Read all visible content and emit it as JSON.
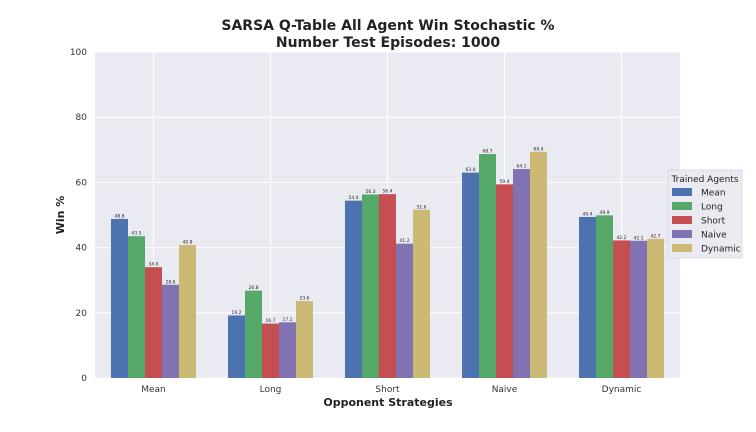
{
  "chart_data": {
    "type": "bar",
    "title_line1": "SARSA Q-Table All Agent Win Stochastic %",
    "title_line2": "Number Test Episodes: 1000",
    "xlabel": "Opponent Strategies",
    "ylabel": "Win %",
    "ylim": [
      0,
      100
    ],
    "yticks": [
      0,
      20,
      40,
      60,
      80,
      100
    ],
    "categories": [
      "Mean",
      "Long",
      "Short",
      "Naive",
      "Dynamic"
    ],
    "legend_title": "Trained Agents",
    "legend_position": "right",
    "grid": true,
    "series": [
      {
        "name": "Mean",
        "color": "#4c72b0",
        "values": [
          48.8,
          19.2,
          54.4,
          63.0,
          49.4
        ]
      },
      {
        "name": "Long",
        "color": "#55a868",
        "values": [
          43.5,
          26.8,
          56.3,
          68.7,
          49.9
        ]
      },
      {
        "name": "Short",
        "color": "#c44e52",
        "values": [
          34.0,
          16.7,
          56.4,
          59.4,
          42.2
        ]
      },
      {
        "name": "Naive",
        "color": "#8172b2",
        "values": [
          28.6,
          17.1,
          41.2,
          64.1,
          42.1
        ]
      },
      {
        "name": "Dynamic",
        "color": "#ccb974",
        "values": [
          40.8,
          23.6,
          51.6,
          69.4,
          42.7
        ]
      }
    ]
  }
}
